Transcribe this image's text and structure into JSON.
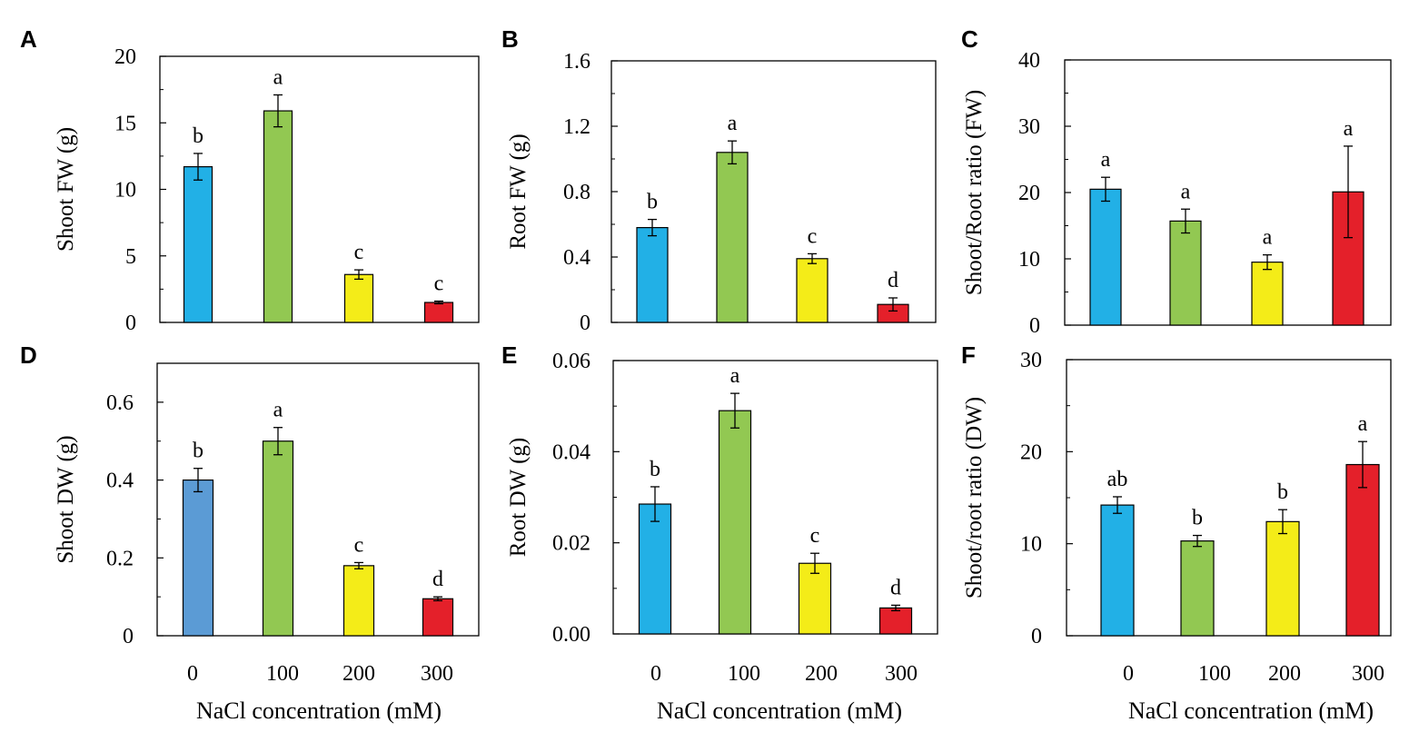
{
  "x_axis": {
    "categories": [
      "0",
      "100",
      "200",
      "300"
    ],
    "title": "NaCl concentration  (mM)"
  },
  "chart_data": [
    {
      "panel": "A",
      "type": "bar",
      "ylabel": "Shoot FW (g)",
      "ylim": [
        0,
        20
      ],
      "yticks": [
        "0",
        "5",
        "10",
        "15",
        "20"
      ],
      "categories": [
        "0",
        "100",
        "200",
        "300"
      ],
      "values": [
        11.7,
        15.9,
        3.6,
        1.5
      ],
      "errors": [
        1.0,
        1.2,
        0.35,
        0.1
      ],
      "sig": [
        "b",
        "a",
        "c",
        "c"
      ],
      "colors": [
        "#22b0e6",
        "#92c852",
        "#f4ec18",
        "#e4202a"
      ],
      "show_xticks": false
    },
    {
      "panel": "B",
      "type": "bar",
      "ylabel": "Root FW (g)",
      "ylim": [
        0,
        1.6
      ],
      "yticks": [
        "0",
        "0.4",
        "0.8",
        "1.2",
        "1.6"
      ],
      "categories": [
        "0",
        "100",
        "200",
        "300"
      ],
      "values": [
        0.58,
        1.04,
        0.39,
        0.11
      ],
      "errors": [
        0.05,
        0.07,
        0.03,
        0.04
      ],
      "sig": [
        "b",
        "a",
        "c",
        "d"
      ],
      "colors": [
        "#22b0e6",
        "#92c852",
        "#f4ec18",
        "#e4202a"
      ],
      "show_xticks": false
    },
    {
      "panel": "C",
      "type": "bar",
      "ylabel": "Shoot/Root ratio (FW)",
      "ylim": [
        0,
        40
      ],
      "yticks": [
        "0",
        "10",
        "20",
        "30",
        "40"
      ],
      "categories": [
        "0",
        "100",
        "200",
        "300"
      ],
      "values": [
        20.5,
        15.7,
        9.5,
        20.1
      ],
      "errors": [
        1.8,
        1.8,
        1.1,
        6.9
      ],
      "sig": [
        "a",
        "a",
        "a",
        "a"
      ],
      "colors": [
        "#22b0e6",
        "#92c852",
        "#f4ec18",
        "#e4202a"
      ],
      "show_xticks": false
    },
    {
      "panel": "D",
      "type": "bar",
      "ylabel": "Shoot DW (g)",
      "ylim": [
        0,
        0.7
      ],
      "yticks": [
        "0",
        "0.2",
        "0.4",
        "0.6"
      ],
      "categories": [
        "0",
        "100",
        "200",
        "300"
      ],
      "values": [
        0.4,
        0.5,
        0.18,
        0.095
      ],
      "errors": [
        0.03,
        0.035,
        0.008,
        0.005
      ],
      "sig": [
        "b",
        "a",
        "c",
        "d"
      ],
      "colors": [
        "#5b9bd5",
        "#92c852",
        "#f4ec18",
        "#e4202a"
      ],
      "show_xticks": true
    },
    {
      "panel": "E",
      "type": "bar",
      "ylabel": "Root DW (g)",
      "ylim": [
        0,
        0.06
      ],
      "yticks": [
        "0.00",
        "0.02",
        "0.04",
        "0.06"
      ],
      "categories": [
        "0",
        "100",
        "200",
        "300"
      ],
      "values": [
        0.0285,
        0.049,
        0.0155,
        0.0057
      ],
      "errors": [
        0.0038,
        0.0038,
        0.0022,
        0.0006
      ],
      "sig": [
        "b",
        "a",
        "c",
        "d"
      ],
      "colors": [
        "#22b0e6",
        "#92c852",
        "#f4ec18",
        "#e4202a"
      ],
      "show_xticks": true
    },
    {
      "panel": "F",
      "type": "bar",
      "ylabel": "Shoot/root ratio (DW)",
      "ylim": [
        0,
        30
      ],
      "yticks": [
        "0",
        "10",
        "20",
        "30"
      ],
      "categories": [
        "0",
        "100",
        "200",
        "300"
      ],
      "values": [
        14.2,
        10.3,
        12.4,
        18.6
      ],
      "errors": [
        0.9,
        0.6,
        1.3,
        2.5
      ],
      "sig": [
        "ab",
        "b",
        "b",
        "a"
      ],
      "colors": [
        "#22b0e6",
        "#92c852",
        "#f4ec18",
        "#e4202a"
      ],
      "show_xticks": true
    }
  ]
}
